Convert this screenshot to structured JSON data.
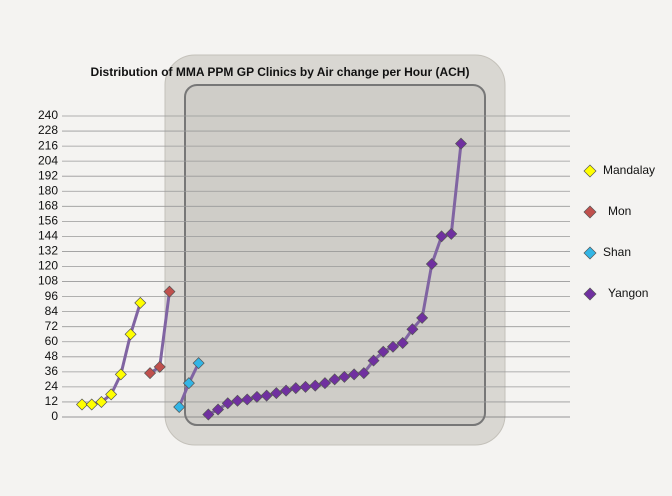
{
  "chart_data": {
    "type": "line",
    "title": "Distribution of MMA PPM GP Clinics by Air change per Hour (ACH)",
    "categories": [
      null,
      null,
      null,
      null,
      null,
      null,
      null,
      null,
      null,
      null,
      null,
      null,
      null,
      null,
      null,
      null,
      null,
      null,
      null,
      null,
      null,
      null,
      null,
      null,
      null,
      null,
      null,
      null,
      null,
      null,
      null,
      null,
      null,
      null,
      null,
      null,
      null,
      null,
      null,
      null
    ],
    "series": [
      {
        "name": "Mandalay",
        "color": "#ffff00",
        "values": [
          10,
          10,
          12,
          18,
          34,
          66,
          91,
          null,
          null,
          null,
          null,
          null,
          null,
          null,
          null,
          null,
          null,
          null,
          null,
          null,
          null,
          null,
          null,
          null,
          null,
          null,
          null,
          null,
          null,
          null,
          null,
          null,
          null,
          null,
          null,
          null,
          null,
          null,
          null,
          null
        ]
      },
      {
        "name": "Mon",
        "color": "#c0504d",
        "values": [
          null,
          null,
          null,
          null,
          null,
          null,
          null,
          35,
          40,
          100,
          null,
          null,
          null,
          null,
          null,
          null,
          null,
          null,
          null,
          null,
          null,
          null,
          null,
          null,
          null,
          null,
          null,
          null,
          null,
          null,
          null,
          null,
          null,
          null,
          null,
          null,
          null,
          null,
          null,
          null
        ]
      },
      {
        "name": "Shan",
        "color": "#33b5e5",
        "values": [
          null,
          null,
          null,
          null,
          null,
          null,
          null,
          null,
          null,
          null,
          8,
          27,
          43,
          null,
          null,
          null,
          null,
          null,
          null,
          null,
          null,
          null,
          null,
          null,
          null,
          null,
          null,
          null,
          null,
          null,
          null,
          null,
          null,
          null,
          null,
          null,
          null,
          null,
          null,
          null
        ]
      },
      {
        "name": "Yangon",
        "color": "#7030a0",
        "values": [
          null,
          null,
          null,
          null,
          null,
          null,
          null,
          null,
          null,
          null,
          null,
          null,
          null,
          2,
          6,
          11,
          13,
          14,
          16,
          17,
          19,
          21,
          23,
          24,
          25,
          27,
          30,
          32,
          34,
          35,
          45,
          52,
          56,
          59,
          70,
          79,
          122,
          144,
          146,
          218
        ]
      }
    ],
    "line_color": "#8064a2",
    "ylim": [
      0,
      240
    ],
    "yticks": [
      0,
      12,
      24,
      36,
      48,
      60,
      72,
      84,
      96,
      108,
      120,
      132,
      144,
      156,
      168,
      180,
      192,
      204,
      216,
      228,
      240
    ],
    "grid": true,
    "legend": "right"
  }
}
